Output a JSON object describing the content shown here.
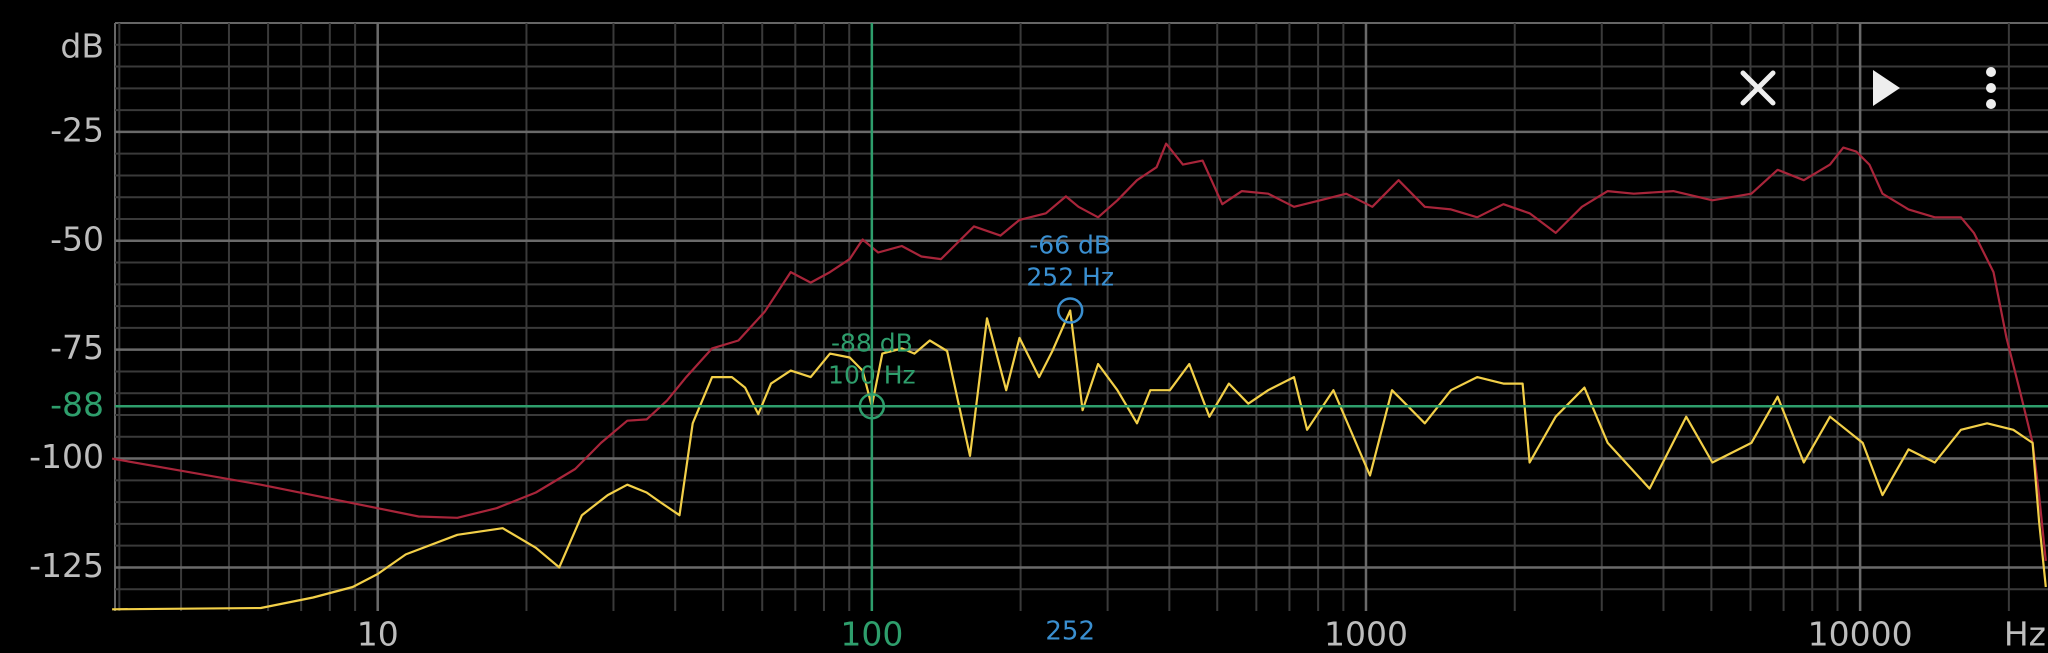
{
  "chart_data": {
    "type": "line",
    "x_label": "Hz",
    "y_label": "dB",
    "log_x": true,
    "grid": true,
    "xlim": [
      2.94,
      24000
    ],
    "ylim": [
      -135,
      0
    ],
    "xticks": [
      10,
      1000,
      10000
    ],
    "yticks": [
      -25,
      -50,
      -75,
      -100,
      -125
    ],
    "xminorticks": [
      3,
      4,
      5,
      6,
      7,
      8,
      9,
      20,
      30,
      40,
      50,
      60,
      70,
      80,
      90,
      200,
      300,
      400,
      500,
      600,
      700,
      800,
      900,
      2000,
      3000,
      4000,
      5000,
      6000,
      7000,
      8000,
      9000,
      20000
    ],
    "yminorticks": [
      -5,
      -10,
      -15,
      -20,
      -30,
      -35,
      -40,
      -45,
      -55,
      -60,
      -65,
      -70,
      -80,
      -85,
      -90,
      -95,
      -105,
      -110,
      -115,
      -120,
      -130
    ],
    "series": [
      {
        "color": "#a8253a",
        "x": [
          2.9,
          5.8,
          10,
          12.1,
          14.5,
          17.4,
          20.9,
          25.1,
          28.3,
          32,
          35,
          38.5,
          42.1,
          47.5,
          53.7,
          60.7,
          68.5,
          75.2,
          82.3,
          90.2,
          95.8,
          103,
          115,
          126,
          138,
          161,
          182,
          199,
          225,
          247,
          262,
          287,
          314,
          344,
          377,
          394,
          426,
          467,
          512,
          561,
          634,
          715,
          808,
          912,
          1030,
          1164,
          1315,
          1486,
          1679,
          1897,
          2143,
          2421,
          2735,
          3084,
          3484,
          4188,
          5023,
          6026,
          6808,
          7691,
          8690,
          9247,
          9821,
          10440,
          11100,
          12530,
          14160,
          15990,
          16990,
          18620,
          19780,
          21030,
          22340,
          23030,
          23750
        ],
        "values": [
          -100,
          -106,
          -111.4,
          -113.3,
          -113.6,
          -111.4,
          -107.8,
          -102.4,
          -96.4,
          -91.3,
          -91,
          -86.7,
          -81.3,
          -74.7,
          -72.9,
          -66.3,
          -57.2,
          -59.6,
          -57.2,
          -54.2,
          -49.7,
          -52.7,
          -51.2,
          -53.6,
          -54.2,
          -46.7,
          -48.8,
          -45.2,
          -43.7,
          -39.8,
          -42.2,
          -44.6,
          -40.7,
          -36.1,
          -33.1,
          -27.7,
          -32.5,
          -31.6,
          -41.6,
          -38.6,
          -39.2,
          -42.2,
          -40.7,
          -39.2,
          -42.2,
          -36.1,
          -42.2,
          -42.8,
          -44.6,
          -41.6,
          -43.7,
          -48.2,
          -42.2,
          -38.6,
          -39.2,
          -38.6,
          -40.7,
          -39.2,
          -33.7,
          -36.1,
          -32.5,
          -28.6,
          -29.5,
          -32.5,
          -39.2,
          -42.8,
          -44.6,
          -44.6,
          -48.2,
          -57.2,
          -72.3,
          -84.3,
          -96.4,
          -108.4,
          -123.5
        ]
      },
      {
        "color": "#f2cf48",
        "x": [
          2.9,
          5.8,
          7.4,
          8.9,
          10,
          11.4,
          14.5,
          17.9,
          20.9,
          23.3,
          25.9,
          29.2,
          32,
          35,
          37.3,
          40.8,
          43.4,
          47.5,
          52.1,
          55.4,
          58.9,
          62.5,
          68.5,
          75.2,
          82.3,
          90.2,
          95.8,
          100,
          105,
          115,
          122,
          131,
          142,
          158,
          171,
          187,
          199,
          218,
          232,
          252,
          267,
          287,
          314,
          344,
          366,
          401,
          439,
          482,
          528,
          578,
          634,
          715,
          760,
          859,
          1019,
          1129,
          1315,
          1486,
          1679,
          1897,
          2075,
          2143,
          2421,
          2767,
          3084,
          3750,
          4446,
          5023,
          6026,
          6808,
          7691,
          8690,
          10120,
          11100,
          12530,
          14160,
          15990,
          18070,
          20420,
          22340,
          23030,
          23750
        ],
        "values": [
          -134.6,
          -134.3,
          -131.9,
          -129.5,
          -126.5,
          -122,
          -117.5,
          -116,
          -120.5,
          -125,
          -113,
          -108.4,
          -106,
          -107.8,
          -110,
          -113,
          -91.9,
          -81.3,
          -81.3,
          -83.7,
          -89.8,
          -82.8,
          -79.8,
          -81.3,
          -75.9,
          -76.8,
          -79.8,
          -88,
          -75.9,
          -74.7,
          -75.9,
          -72.9,
          -75.3,
          -99.4,
          -67.8,
          -84.3,
          -72.3,
          -81.3,
          -75.3,
          -66,
          -88.9,
          -78.3,
          -84.3,
          -91.9,
          -84.3,
          -84.3,
          -78.3,
          -90.4,
          -82.8,
          -87.4,
          -84.3,
          -81.3,
          -93.4,
          -84.3,
          -103.9,
          -84.3,
          -91.9,
          -84.3,
          -81.3,
          -82.8,
          -82.8,
          -100.9,
          -90.4,
          -83.7,
          -96.4,
          -106.9,
          -90.4,
          -100.9,
          -96.4,
          -85.8,
          -100.9,
          -90.4,
          -96.4,
          -108.4,
          -97.9,
          -100.9,
          -93.4,
          -91.9,
          -93.4,
          -96.4,
          -114.5,
          -129.5
        ]
      }
    ],
    "cursor": {
      "x": 100,
      "y": -88,
      "label_db": "-88 dB",
      "label_hz": "100 Hz",
      "color": "#2e9e6c"
    },
    "peak": {
      "x": 252,
      "y": -66,
      "label_db": "-66 dB",
      "label_hz": "252 Hz",
      "color": "#3a8fd0"
    }
  }
}
